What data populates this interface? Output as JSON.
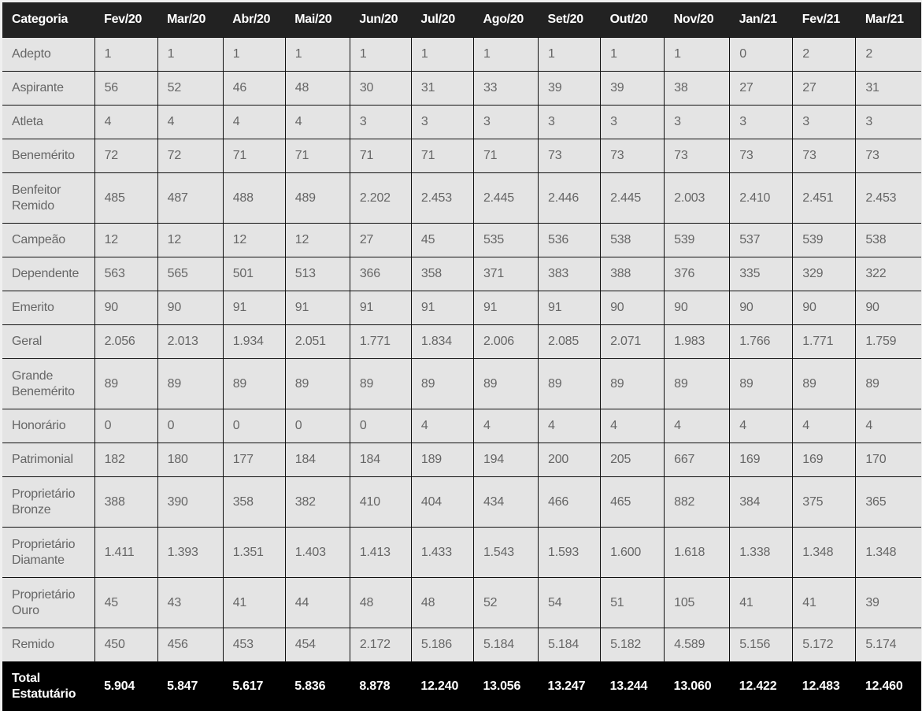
{
  "table": {
    "headers": [
      "Categoria",
      "Fev/20",
      "Mar/20",
      "Abr/20",
      "Mai/20",
      "Jun/20",
      "Jul/20",
      "Ago/20",
      "Set/20",
      "Out/20",
      "Nov/20",
      "Jan/21",
      "Fev/21",
      "Mar/21"
    ],
    "rows": [
      {
        "label": [
          "Adepto"
        ],
        "values": [
          "1",
          "1",
          "1",
          "1",
          "1",
          "1",
          "1",
          "1",
          "1",
          "1",
          "0",
          "2",
          "2"
        ]
      },
      {
        "label": [
          "Aspirante"
        ],
        "values": [
          "56",
          "52",
          "46",
          "48",
          "30",
          "31",
          "33",
          "39",
          "39",
          "38",
          "27",
          "27",
          "31"
        ]
      },
      {
        "label": [
          "Atleta"
        ],
        "values": [
          "4",
          "4",
          "4",
          "4",
          "3",
          "3",
          "3",
          "3",
          "3",
          "3",
          "3",
          "3",
          "3"
        ]
      },
      {
        "label": [
          "Benemérito"
        ],
        "values": [
          "72",
          "72",
          "71",
          "71",
          "71",
          "71",
          "71",
          "73",
          "73",
          "73",
          "73",
          "73",
          "73"
        ]
      },
      {
        "label": [
          "Benfeitor",
          "Remido"
        ],
        "values": [
          "485",
          "487",
          "488",
          "489",
          "2.202",
          "2.453",
          "2.445",
          "2.446",
          "2.445",
          "2.003",
          "2.410",
          "2.451",
          "2.453"
        ]
      },
      {
        "label": [
          "Campeão"
        ],
        "values": [
          "12",
          "12",
          "12",
          "12",
          "27",
          "45",
          "535",
          "536",
          "538",
          "539",
          "537",
          "539",
          "538"
        ]
      },
      {
        "label": [
          "Dependente"
        ],
        "values": [
          "563",
          "565",
          "501",
          "513",
          "366",
          "358",
          "371",
          "383",
          "388",
          "376",
          "335",
          "329",
          "322"
        ]
      },
      {
        "label": [
          "Emerito"
        ],
        "values": [
          "90",
          "90",
          "91",
          "91",
          "91",
          "91",
          "91",
          "91",
          "90",
          "90",
          "90",
          "90",
          "90"
        ]
      },
      {
        "label": [
          "Geral"
        ],
        "values": [
          "2.056",
          "2.013",
          "1.934",
          "2.051",
          "1.771",
          "1.834",
          "2.006",
          "2.085",
          "2.071",
          "1.983",
          "1.766",
          "1.771",
          "1.759"
        ]
      },
      {
        "label": [
          "Grande",
          "Benemérito"
        ],
        "values": [
          "89",
          "89",
          "89",
          "89",
          "89",
          "89",
          "89",
          "89",
          "89",
          "89",
          "89",
          "89",
          "89"
        ]
      },
      {
        "label": [
          "Honorário"
        ],
        "values": [
          "0",
          "0",
          "0",
          "0",
          "0",
          "4",
          "4",
          "4",
          "4",
          "4",
          "4",
          "4",
          "4"
        ]
      },
      {
        "label": [
          "Patrimonial"
        ],
        "values": [
          "182",
          "180",
          "177",
          "184",
          "184",
          "189",
          "194",
          "200",
          "205",
          "667",
          "169",
          "169",
          "170"
        ]
      },
      {
        "label": [
          "Proprietário",
          "Bronze"
        ],
        "values": [
          "388",
          "390",
          "358",
          "382",
          "410",
          "404",
          "434",
          "466",
          "465",
          "882",
          "384",
          "375",
          "365"
        ]
      },
      {
        "label": [
          "Proprietário",
          "Diamante"
        ],
        "values": [
          "1.411",
          "1.393",
          "1.351",
          "1.403",
          "1.413",
          "1.433",
          "1.543",
          "1.593",
          "1.600",
          "1.618",
          "1.338",
          "1.348",
          "1.348"
        ]
      },
      {
        "label": [
          "Proprietário",
          "Ouro"
        ],
        "values": [
          "45",
          "43",
          "41",
          "44",
          "48",
          "48",
          "52",
          "54",
          "51",
          "105",
          "41",
          "41",
          "39"
        ]
      },
      {
        "label": [
          "Remido"
        ],
        "values": [
          "450",
          "456",
          "453",
          "454",
          "2.172",
          "5.186",
          "5.184",
          "5.184",
          "5.182",
          "4.589",
          "5.156",
          "5.172",
          "5.174"
        ]
      }
    ],
    "total": {
      "label": [
        "Total",
        "Estatutário"
      ],
      "values": [
        "5.904",
        "5.847",
        "5.617",
        "5.836",
        "8.878",
        "12.240",
        "13.056",
        "13.247",
        "13.244",
        "13.060",
        "12.422",
        "12.483",
        "12.460"
      ]
    }
  }
}
